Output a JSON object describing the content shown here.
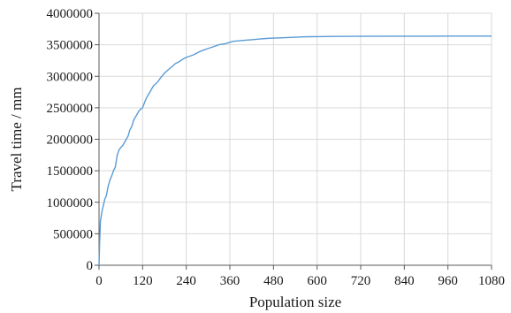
{
  "chart_data": {
    "type": "line",
    "title": "",
    "xlabel": "Population size",
    "ylabel": "Travel time / mm",
    "xlim": [
      0,
      1080
    ],
    "ylim": [
      0,
      4000000
    ],
    "xticks": [
      0,
      120,
      240,
      360,
      480,
      600,
      720,
      840,
      960,
      1080
    ],
    "yticks": [
      0,
      500000,
      1000000,
      1500000,
      2000000,
      2500000,
      3000000,
      3500000,
      4000000
    ],
    "xtick_labels": [
      "0",
      "120",
      "240",
      "360",
      "480",
      "600",
      "720",
      "840",
      "960",
      "1080"
    ],
    "ytick_labels": [
      "0",
      "500000",
      "1000000",
      "1500000",
      "2000000",
      "2500000",
      "3000000",
      "3500000",
      "4000000"
    ],
    "grid": true,
    "line_color": "#5b9bd5",
    "series": [
      {
        "x": [
          0,
          2,
          4,
          8,
          12,
          16,
          20,
          25,
          30,
          35,
          40,
          45,
          50,
          55,
          60,
          65,
          70,
          75,
          80,
          85,
          90,
          95,
          100,
          105,
          110,
          115,
          120,
          125,
          130,
          135,
          140,
          145,
          150,
          160,
          170,
          180,
          190,
          200,
          210,
          220,
          230,
          240,
          250,
          260,
          270,
          280,
          290,
          300,
          310,
          320,
          330,
          340,
          350,
          360,
          370,
          380,
          400,
          420,
          440,
          460,
          480,
          500,
          520,
          540,
          560,
          580,
          600,
          650,
          700,
          800,
          900,
          1000,
          1080
        ],
        "y": [
          0,
          400000,
          700000,
          850000,
          950000,
          1050000,
          1100000,
          1250000,
          1350000,
          1420000,
          1500000,
          1560000,
          1750000,
          1830000,
          1870000,
          1900000,
          1950000,
          2000000,
          2050000,
          2150000,
          2200000,
          2300000,
          2350000,
          2400000,
          2450000,
          2480000,
          2500000,
          2580000,
          2650000,
          2700000,
          2750000,
          2800000,
          2850000,
          2900000,
          2980000,
          3050000,
          3100000,
          3150000,
          3200000,
          3230000,
          3270000,
          3300000,
          3320000,
          3340000,
          3370000,
          3400000,
          3420000,
          3440000,
          3460000,
          3480000,
          3500000,
          3510000,
          3520000,
          3540000,
          3555000,
          3560000,
          3570000,
          3580000,
          3590000,
          3600000,
          3605000,
          3610000,
          3615000,
          3620000,
          3625000,
          3628000,
          3630000,
          3632000,
          3634000,
          3636000,
          3637000,
          3638000,
          3638000
        ]
      }
    ]
  }
}
